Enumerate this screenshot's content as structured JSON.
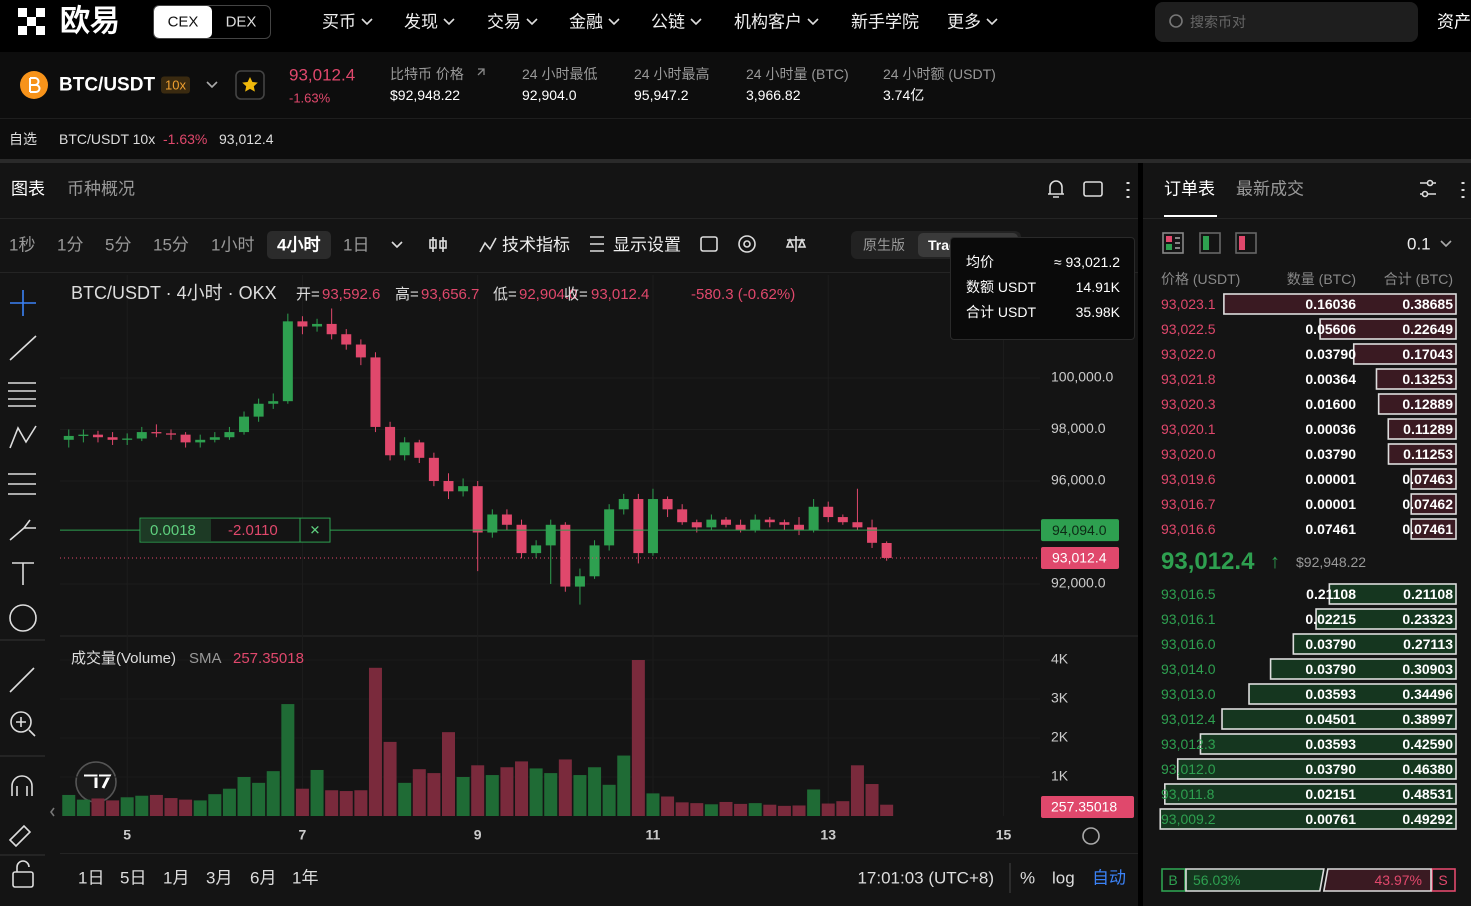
{
  "header": {
    "logo": "欧易",
    "tabs": [
      "CEX",
      "DEX"
    ],
    "nav": [
      "买币",
      "发现",
      "交易",
      "金融",
      "公链",
      "机构客户",
      "新手学院",
      "更多"
    ],
    "search_placeholder": "搜索币对",
    "right": "资产"
  },
  "ticker": {
    "pair": "BTC/USDT",
    "leverage": "10x",
    "price": "93,012.4",
    "change": "-1.63%",
    "stats": [
      {
        "label": "比特币 价格",
        "value": "$92,948.22"
      },
      {
        "label": "24 小时最低",
        "value": "92,904.0"
      },
      {
        "label": "24 小时最高",
        "value": "95,947.2"
      },
      {
        "label": "24 小时量 (BTC)",
        "value": "3,966.82"
      },
      {
        "label": "24 小时额 (USDT)",
        "value": "3.74亿"
      }
    ]
  },
  "watchlist": {
    "label": "自选",
    "pair": "BTC/USDT 10x",
    "change": "-1.63%",
    "price": "93,012.4"
  },
  "chart_tabs": [
    "图表",
    "币种概况"
  ],
  "intervals": [
    "1秒",
    "1分",
    "5分",
    "15分",
    "1小时",
    "4小时",
    "1日"
  ],
  "active_interval": 5,
  "tools": [
    "技术指标",
    "显示设置"
  ],
  "version_tabs": [
    "原生版",
    "TradingView"
  ],
  "tooltip": [
    {
      "label": "均价",
      "value": "≈ 93,021.2"
    },
    {
      "label": "数额 USDT",
      "value": "14.91K"
    },
    {
      "label": "合计 USDT",
      "value": "35.98K"
    }
  ],
  "chart_data": {
    "type": "candlestick",
    "title": "BTC/USDT · 4小时 · OKX",
    "ohlc_labels": [
      "开=",
      "高=",
      "低=",
      "收="
    ],
    "legend_values": [
      "93,592.6",
      "93,656.7",
      "92,904.0",
      "93,012.4"
    ],
    "legend_change": "-580.3 (-0.62%)",
    "up_color": "#2ea050",
    "down_color": "#e0486c",
    "ohlc": [
      [
        97600,
        98000,
        97300,
        97750
      ],
      [
        97750,
        98000,
        97500,
        97800
      ],
      [
        97800,
        97950,
        97500,
        97700
      ],
      [
        97700,
        97900,
        97400,
        97600
      ],
      [
        97600,
        97850,
        97400,
        97650
      ],
      [
        97650,
        98100,
        97550,
        97900
      ],
      [
        97900,
        98200,
        97700,
        97850
      ],
      [
        97850,
        98000,
        97600,
        97800
      ],
      [
        97800,
        97900,
        97300,
        97500
      ],
      [
        97500,
        97800,
        97300,
        97600
      ],
      [
        97600,
        97900,
        97500,
        97700
      ],
      [
        97700,
        98100,
        97600,
        97900
      ],
      [
        97900,
        98700,
        97800,
        98500
      ],
      [
        98500,
        99200,
        98300,
        99000
      ],
      [
        99000,
        99400,
        98800,
        99100
      ],
      [
        99100,
        102500,
        99000,
        102200
      ],
      [
        102200,
        102400,
        101700,
        102000
      ],
      [
        102000,
        102300,
        101800,
        102100
      ],
      [
        102100,
        102700,
        101500,
        101700
      ],
      [
        101700,
        101900,
        101100,
        101300
      ],
      [
        101300,
        101500,
        100500,
        100800
      ],
      [
        100800,
        101000,
        97900,
        98100
      ],
      [
        98100,
        98300,
        96800,
        97000
      ],
      [
        97000,
        97700,
        96800,
        97500
      ],
      [
        97500,
        97600,
        96700,
        96900
      ],
      [
        96900,
        97100,
        95800,
        96000
      ],
      [
        96000,
        96300,
        95300,
        95600
      ],
      [
        95600,
        96100,
        95400,
        95800
      ],
      [
        95800,
        96000,
        92500,
        94000
      ],
      [
        94000,
        94900,
        93800,
        94700
      ],
      [
        94700,
        94900,
        94100,
        94300
      ],
      [
        94300,
        94500,
        93000,
        93200
      ],
      [
        93200,
        93700,
        93000,
        93500
      ],
      [
        93500,
        94500,
        92000,
        94300
      ],
      [
        94300,
        94400,
        91700,
        91900
      ],
      [
        91900,
        92600,
        91200,
        92300
      ],
      [
        92300,
        93700,
        92200,
        93500
      ],
      [
        93500,
        95100,
        93300,
        94900
      ],
      [
        94900,
        95500,
        94700,
        95300
      ],
      [
        95300,
        95500,
        92800,
        93200
      ],
      [
        93200,
        95700,
        93100,
        95300
      ],
      [
        95300,
        95400,
        94600,
        94900
      ],
      [
        94900,
        95100,
        94300,
        94400
      ],
      [
        94400,
        94500,
        94000,
        94200
      ],
      [
        94200,
        94700,
        94100,
        94500
      ],
      [
        94500,
        94600,
        94200,
        94300
      ],
      [
        94300,
        94500,
        94000,
        94100
      ],
      [
        94100,
        94700,
        94000,
        94500
      ],
      [
        94500,
        94600,
        94200,
        94400
      ],
      [
        94400,
        94500,
        94100,
        94300
      ],
      [
        94300,
        94600,
        93900,
        94100
      ],
      [
        94100,
        95300,
        94000,
        95000
      ],
      [
        95000,
        95200,
        94400,
        94600
      ],
      [
        94600,
        94700,
        94300,
        94400
      ],
      [
        94400,
        95700,
        94100,
        94200
      ],
      [
        94200,
        94500,
        93400,
        93600
      ],
      [
        93592.6,
        93656.7,
        92904,
        93012.4
      ]
    ],
    "xlim": [
      -0.6,
      66.5
    ],
    "xticks": [
      {
        "value": 4,
        "label": "5"
      },
      {
        "value": 16,
        "label": "7"
      },
      {
        "value": 28,
        "label": "9"
      },
      {
        "value": 40,
        "label": "11"
      },
      {
        "value": 52,
        "label": "13"
      },
      {
        "value": 64,
        "label": "15"
      }
    ],
    "ylim": [
      90020,
      104000
    ],
    "yticks": [
      {
        "value": 92000,
        "label": "92,000.0"
      },
      {
        "value": 96000,
        "label": "96,000.0"
      },
      {
        "value": 98000,
        "label": "98,000.0"
      },
      {
        "value": 100000,
        "label": "100,000.0"
      }
    ],
    "grid": true,
    "position": {
      "value": 94094,
      "label": "94,094.0",
      "qty": "0.0018",
      "pnl": "-2.0110",
      "close": "✕"
    },
    "last_price": {
      "value": 93012.4,
      "label": "93,012.4"
    },
    "volume": {
      "label": "成交量(Volume)",
      "sma_label": "SMA",
      "sma": "257.35018",
      "values": [
        540,
        420,
        450,
        400,
        480,
        520,
        540,
        460,
        420,
        400,
        560,
        700,
        1000,
        850,
        1150,
        2870,
        700,
        1180,
        660,
        640,
        660,
        3800,
        1900,
        850,
        1200,
        1100,
        2150,
        1000,
        1300,
        1050,
        1250,
        1400,
        1220,
        1100,
        1450,
        1050,
        1250,
        800,
        1550,
        4000,
        580,
        500,
        350,
        330,
        300,
        360,
        310,
        330,
        290,
        260,
        270,
        680,
        320,
        380,
        1300,
        820,
        290
      ],
      "up_color": "#1f6b35",
      "down_color": "#7a2a3c",
      "ylim": [
        0,
        4590
      ],
      "yticks": [
        {
          "value": 1000,
          "label": "1K"
        },
        {
          "value": 2000,
          "label": "2K"
        },
        {
          "value": 3000,
          "label": "3K"
        },
        {
          "value": 4000,
          "label": "4K"
        }
      ]
    }
  },
  "bottom_bar": {
    "ranges": [
      "1日",
      "5日",
      "1月",
      "3月",
      "6月",
      "1年"
    ],
    "time": "17:01:03 (UTC+8)",
    "percent": "%",
    "log": "log",
    "auto": "自动"
  },
  "orderbook": {
    "tabs": [
      "订单表",
      "最新成交"
    ],
    "precision": "0.1",
    "columns": [
      "价格 (USDT)",
      "数量 (BTC)",
      "合计 (BTC)"
    ],
    "asks": [
      [
        "93,023.1",
        "0.16036",
        "0.38685"
      ],
      [
        "93,022.5",
        "0.05606",
        "0.22649"
      ],
      [
        "93,022.0",
        "0.03790",
        "0.17043"
      ],
      [
        "93,021.8",
        "0.00364",
        "0.13253"
      ],
      [
        "93,020.3",
        "0.01600",
        "0.12889"
      ],
      [
        "93,020.1",
        "0.00036",
        "0.11289"
      ],
      [
        "93,020.0",
        "0.03790",
        "0.11253"
      ],
      [
        "93,019.6",
        "0.00001",
        "0.07463"
      ],
      [
        "93,016.7",
        "0.00001",
        "0.07462"
      ],
      [
        "93,016.6",
        "0.07461",
        "0.07461"
      ]
    ],
    "mid": "93,012.4",
    "mid_arrow": "↑",
    "mid_usd": "$92,948.22",
    "bids": [
      [
        "93,016.5",
        "0.21108",
        "0.21108"
      ],
      [
        "93,016.1",
        "0.02215",
        "0.23323"
      ],
      [
        "93,016.0",
        "0.03790",
        "0.27113"
      ],
      [
        "93,014.0",
        "0.03790",
        "0.30903"
      ],
      [
        "93,013.0",
        "0.03593",
        "0.34496"
      ],
      [
        "93,012.4",
        "0.04501",
        "0.38997"
      ],
      [
        "93,012.3",
        "0.03593",
        "0.42590"
      ],
      [
        "93,012.0",
        "0.03790",
        "0.46380"
      ],
      [
        "93,011.8",
        "0.02151",
        "0.48531"
      ],
      [
        "93,009.2",
        "0.00761",
        "0.49292"
      ]
    ],
    "buy_tag": "B",
    "buy_ratio": "56.03%",
    "sell_ratio": "43.97%",
    "sell_tag": "S"
  }
}
